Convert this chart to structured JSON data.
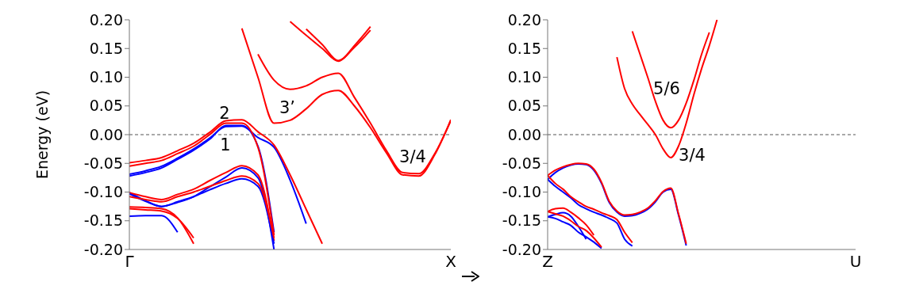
{
  "chart_data": [
    {
      "type": "line",
      "ylabel": "Energy (eV)",
      "categories": [
        "Γ",
        null,
        null,
        null,
        null,
        null,
        null,
        null,
        null,
        null,
        null,
        null,
        null,
        null,
        null,
        null,
        null,
        null,
        null,
        null,
        "X"
      ],
      "ylim": [
        -0.2,
        0.2
      ],
      "yticks": [
        {
          "value": -0.2,
          "label": "-0.20"
        },
        {
          "value": -0.15,
          "label": "-0.15"
        },
        {
          "value": -0.1,
          "label": "-0.10"
        },
        {
          "value": -0.05,
          "label": "-0.05"
        },
        {
          "value": 0,
          "label": "0.00"
        },
        {
          "value": 0.05,
          "label": "0.05"
        },
        {
          "value": 0.1,
          "label": "0.10"
        },
        {
          "value": 0.15,
          "label": "0.15"
        },
        {
          "value": 0.2,
          "label": "0.20"
        }
      ],
      "grid": false,
      "marker": "none",
      "line_style": "solid",
      "ref_lines": [
        {
          "axis": "y",
          "value": 0,
          "line_style": "dashed",
          "color": "#555555"
        }
      ],
      "annotations": [
        "2",
        "1",
        "3’",
        "3/4"
      ],
      "series": [
        {
          "color": "#0000ff",
          "values": [
            -0.142,
            -0.141,
            -0.141,
            -0.17,
            null,
            null,
            null,
            null,
            null,
            null,
            null,
            null,
            null,
            null,
            null,
            null,
            null,
            null,
            null,
            null,
            null
          ]
        },
        {
          "color": "#ff0000",
          "values": [
            -0.126,
            -0.127,
            -0.129,
            -0.145,
            -0.19,
            null,
            null,
            null,
            null,
            null,
            null,
            null,
            null,
            null,
            null,
            null,
            null,
            null,
            null,
            null,
            null
          ]
        },
        {
          "color": "#ff0000",
          "values": [
            -0.129,
            -0.131,
            -0.133,
            -0.146,
            -0.18,
            null,
            null,
            null,
            null,
            null,
            null,
            null,
            null,
            null,
            null,
            null,
            null,
            null,
            null,
            null,
            null
          ]
        },
        {
          "color": "#0000ff",
          "values": [
            -0.101,
            -0.115,
            -0.125,
            -0.118,
            -0.108,
            -0.091,
            -0.074,
            -0.058,
            -0.075,
            -0.2,
            null,
            null,
            null,
            null,
            null,
            null,
            null,
            null,
            null,
            null,
            null
          ]
        },
        {
          "color": "#ff0000",
          "values": [
            -0.101,
            -0.108,
            -0.113,
            -0.104,
            -0.095,
            -0.08,
            -0.066,
            -0.054,
            -0.07,
            -0.185,
            null,
            null,
            null,
            null,
            null,
            null,
            null,
            null,
            null,
            null,
            null
          ]
        },
        {
          "color": "#0000ff",
          "values": [
            -0.103,
            -0.116,
            -0.125,
            -0.117,
            -0.108,
            -0.096,
            -0.085,
            -0.077,
            -0.09,
            -0.19,
            null,
            null,
            null,
            null,
            null,
            null,
            null,
            null,
            null,
            null,
            null
          ]
        },
        {
          "color": "#ff0000",
          "values": [
            -0.108,
            -0.113,
            -0.117,
            -0.108,
            -0.1,
            -0.09,
            -0.08,
            -0.072,
            -0.085,
            -0.18,
            null,
            null,
            null,
            null,
            null,
            null,
            null,
            null,
            null,
            null,
            null
          ]
        },
        {
          "color": "#0000ff",
          "values": [
            -0.069,
            -0.063,
            -0.055,
            -0.041,
            -0.025,
            -0.006,
            0.014,
            0.015,
            -0.005,
            -0.022,
            -0.079,
            -0.155,
            null,
            null,
            null,
            null,
            null,
            null,
            null,
            null,
            null
          ]
        },
        {
          "color": "#0000ff",
          "values": [
            -0.072,
            -0.066,
            -0.058,
            -0.043,
            -0.027,
            -0.008,
            0.016,
            0.016,
            -0.02,
            -0.17,
            null,
            null,
            null,
            null,
            null,
            null,
            null,
            null,
            null,
            null,
            null
          ]
        },
        {
          "color": "#ff0000",
          "values": [
            -0.049,
            -0.045,
            -0.04,
            -0.028,
            -0.015,
            0.004,
            0.024,
            0.026,
            0.005,
            -0.018,
            -0.07,
            -0.13,
            -0.19,
            null,
            null,
            null,
            null,
            null,
            null,
            null,
            null
          ]
        },
        {
          "color": "#ff0000",
          "values": [
            -0.055,
            -0.05,
            -0.045,
            -0.033,
            -0.02,
            0,
            0.02,
            0.02,
            -0.022,
            -0.175,
            null,
            null,
            null,
            null,
            null,
            null,
            null,
            null,
            null,
            null,
            null
          ]
        },
        {
          "color": "#ff0000",
          "values": [
            null,
            null,
            null,
            null,
            null,
            null,
            null,
            0.185,
            0.1,
            0.02,
            0.025,
            0.045,
            0.07,
            0.077,
            0.05,
            0.012,
            -0.032,
            -0.07,
            -0.072,
            -0.035,
            0.026
          ]
        },
        {
          "color": "#ff0000",
          "values": [
            null,
            null,
            null,
            null,
            null,
            null,
            null,
            null,
            0.14,
            0.095,
            0.079,
            0.085,
            0.1,
            0.107,
            0.065,
            0.02,
            -0.028,
            -0.066,
            -0.068,
            -0.033,
            0.024
          ]
        },
        {
          "color": "#ff0000",
          "values": [
            null,
            null,
            null,
            null,
            null,
            null,
            null,
            null,
            null,
            null,
            0.197,
            0.173,
            0.15,
            0.128,
            0.155,
            0.188,
            null,
            null,
            null,
            null,
            null
          ]
        },
        {
          "color": "#ff0000",
          "values": [
            null,
            null,
            null,
            null,
            null,
            null,
            null,
            null,
            null,
            null,
            null,
            0.184,
            0.157,
            0.129,
            0.152,
            0.182,
            null,
            null,
            null,
            null,
            null
          ]
        }
      ]
    },
    {
      "type": "line",
      "categories": [
        "Z",
        null,
        null,
        null,
        null,
        null,
        null,
        null,
        null,
        null,
        null,
        null,
        null,
        null,
        null,
        null,
        null,
        null,
        null,
        null,
        null,
        null,
        null,
        null,
        null,
        null,
        null,
        null,
        null,
        null,
        null,
        null,
        null,
        null,
        null,
        null,
        null,
        null,
        null,
        null,
        "U"
      ],
      "ylim": [
        -0.2,
        0.2
      ],
      "yticks": [
        {
          "value": -0.2,
          "label": "-0.20"
        },
        {
          "value": -0.15,
          "label": "-0.15"
        },
        {
          "value": -0.1,
          "label": "-0.10"
        },
        {
          "value": -0.05,
          "label": "-0.05"
        },
        {
          "value": 0,
          "label": "0.00"
        },
        {
          "value": 0.05,
          "label": "0.05"
        },
        {
          "value": 0.1,
          "label": "0.10"
        },
        {
          "value": 0.15,
          "label": "0.15"
        },
        {
          "value": 0.2,
          "label": "0.20"
        }
      ],
      "grid": false,
      "marker": "none",
      "line_style": "solid",
      "ref_lines": [
        {
          "axis": "y",
          "value": 0,
          "line_style": "dashed",
          "color": "#555555"
        }
      ],
      "annotations": [
        "5/6",
        "3/4"
      ],
      "series": [
        {
          "color": "#ff0000",
          "values": [
            null,
            null,
            null,
            null,
            null,
            null,
            null,
            null,
            null,
            null,
            null,
            0.18,
            0.14,
            0.1,
            0.058,
            0.025,
            0.012,
            0.025,
            0.055,
            0.095,
            0.14,
            0.178,
            null,
            null,
            null,
            null,
            null,
            null,
            null,
            null,
            null,
            null,
            null,
            null,
            null,
            null,
            null,
            null,
            null,
            null,
            null
          ]
        },
        {
          "color": "#ff0000",
          "values": [
            null,
            null,
            null,
            null,
            null,
            null,
            null,
            null,
            null,
            0.135,
            0.08,
            0.053,
            0.035,
            0.018,
            0,
            -0.025,
            -0.04,
            -0.02,
            0.02,
            0.07,
            0.115,
            0.155,
            0.2,
            null,
            null,
            null,
            null,
            null,
            null,
            null,
            null,
            null,
            null,
            null,
            null,
            null,
            null,
            null,
            null,
            null,
            null
          ]
        },
        {
          "color": "#0000ff",
          "values": [
            -0.078,
            -0.066,
            -0.058,
            -0.053,
            -0.051,
            -0.052,
            -0.062,
            -0.085,
            -0.118,
            -0.135,
            -0.142,
            -0.141,
            -0.137,
            -0.13,
            -0.117,
            -0.1,
            -0.095,
            -0.14,
            -0.193,
            null,
            null,
            null,
            null,
            null,
            null,
            null,
            null,
            null,
            null,
            null,
            null,
            null,
            null,
            null,
            null,
            null,
            null,
            null,
            null,
            null,
            null
          ]
        },
        {
          "color": "#ff0000",
          "values": [
            -0.071,
            -0.062,
            -0.056,
            -0.052,
            -0.05,
            -0.051,
            -0.06,
            -0.083,
            -0.116,
            -0.133,
            -0.14,
            -0.139,
            -0.135,
            -0.128,
            -0.115,
            -0.099,
            -0.093,
            -0.138,
            -0.19,
            null,
            null,
            null,
            null,
            null,
            null,
            null,
            null,
            null,
            null,
            null,
            null,
            null,
            null,
            null,
            null,
            null,
            null,
            null,
            null,
            null,
            null
          ]
        },
        {
          "color": "#0000ff",
          "values": [
            -0.078,
            -0.09,
            -0.1,
            -0.11,
            -0.122,
            -0.129,
            -0.135,
            -0.14,
            -0.146,
            -0.154,
            -0.182,
            -0.194,
            null,
            null,
            null,
            null,
            null,
            null,
            null,
            null,
            null,
            null,
            null,
            null,
            null,
            null,
            null,
            null,
            null,
            null,
            null,
            null,
            null,
            null,
            null,
            null,
            null,
            null,
            null,
            null,
            null
          ]
        },
        {
          "color": "#ff0000",
          "values": [
            -0.071,
            -0.085,
            -0.095,
            -0.108,
            -0.117,
            -0.125,
            -0.13,
            -0.136,
            -0.141,
            -0.148,
            -0.17,
            -0.188,
            null,
            null,
            null,
            null,
            null,
            null,
            null,
            null,
            null,
            null,
            null,
            null,
            null,
            null,
            null,
            null,
            null,
            null,
            null,
            null,
            null,
            null,
            null,
            null,
            null,
            null,
            null,
            null,
            null
          ]
        },
        {
          "color": "#0000ff",
          "values": [
            -0.143,
            -0.139,
            -0.136,
            -0.142,
            -0.16,
            -0.182,
            null,
            null,
            null,
            null,
            null,
            null,
            null,
            null,
            null,
            null,
            null,
            null,
            null,
            null,
            null,
            null,
            null,
            null,
            null,
            null,
            null,
            null,
            null,
            null,
            null,
            null,
            null,
            null,
            null,
            null,
            null,
            null,
            null,
            null,
            null
          ]
        },
        {
          "color": "#0000ff",
          "values": [
            -0.143,
            -0.146,
            -0.152,
            -0.158,
            -0.17,
            -0.178,
            -0.187,
            -0.198,
            null,
            null,
            null,
            null,
            null,
            null,
            null,
            null,
            null,
            null,
            null,
            null,
            null,
            null,
            null,
            null,
            null,
            null,
            null,
            null,
            null,
            null,
            null,
            null,
            null,
            null,
            null,
            null,
            null,
            null,
            null,
            null,
            null
          ]
        },
        {
          "color": "#ff0000",
          "values": [
            -0.134,
            -0.129,
            -0.128,
            -0.135,
            -0.145,
            -0.157,
            -0.175,
            null,
            null,
            null,
            null,
            null,
            null,
            null,
            null,
            null,
            null,
            null,
            null,
            null,
            null,
            null,
            null,
            null,
            null,
            null,
            null,
            null,
            null,
            null,
            null,
            null,
            null,
            null,
            null,
            null,
            null,
            null,
            null,
            null,
            null
          ]
        },
        {
          "color": "#ff0000",
          "values": [
            -0.134,
            -0.138,
            -0.142,
            -0.15,
            -0.16,
            -0.167,
            -0.18,
            -0.196,
            null,
            null,
            null,
            null,
            null,
            null,
            null,
            null,
            null,
            null,
            null,
            null,
            null,
            null,
            null,
            null,
            null,
            null,
            null,
            null,
            null,
            null,
            null,
            null,
            null,
            null,
            null,
            null,
            null,
            null,
            null,
            null,
            null
          ]
        }
      ]
    }
  ]
}
